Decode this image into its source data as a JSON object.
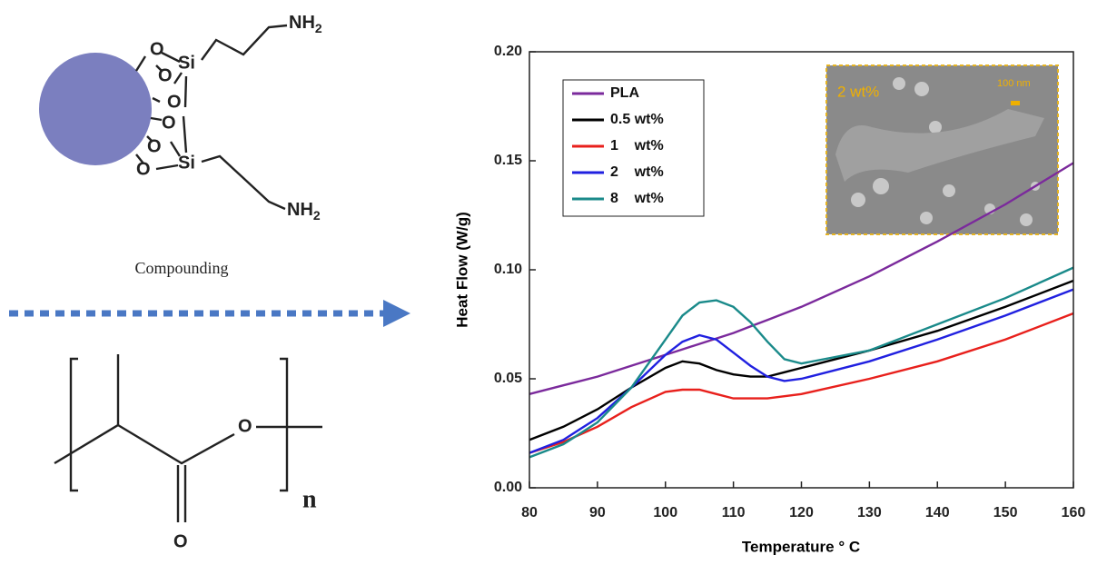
{
  "diagram": {
    "oxygens": [
      "O",
      "O",
      "O",
      "O",
      "O",
      "O"
    ],
    "silicons": [
      "Si",
      "Si"
    ],
    "amines": [
      {
        "text": "NH",
        "sub": "2"
      },
      {
        "text": "NH",
        "sub": "2"
      }
    ],
    "process": "Compounding",
    "pla_oxygens": [
      "O",
      "O"
    ],
    "repeat": "n"
  },
  "chart_data": {
    "type": "line",
    "xlabel": "Temperature ° C",
    "ylabel": "Heat Flow (W/g)",
    "x": [
      80,
      85,
      90,
      95,
      100,
      102.5,
      105,
      107.5,
      110,
      112.5,
      115,
      117.5,
      120,
      130,
      140,
      150,
      160
    ],
    "series": [
      {
        "name": "PLA",
        "color": "#7b2a9c",
        "values": [
          0.043,
          0.047,
          0.051,
          0.056,
          0.061,
          0.0635,
          0.066,
          0.0685,
          0.071,
          0.074,
          0.077,
          0.08,
          0.083,
          0.097,
          0.113,
          0.13,
          0.149
        ]
      },
      {
        "name": "0.5 wt%",
        "color": "#000000",
        "values": [
          0.022,
          0.028,
          0.036,
          0.046,
          0.055,
          0.058,
          0.057,
          0.054,
          0.052,
          0.051,
          0.051,
          0.053,
          0.055,
          0.063,
          0.072,
          0.083,
          0.095
        ]
      },
      {
        "name": "1    wt%",
        "color": "#e8201c",
        "values": [
          0.016,
          0.021,
          0.028,
          0.037,
          0.044,
          0.045,
          0.045,
          0.043,
          0.041,
          0.041,
          0.041,
          0.042,
          0.043,
          0.05,
          0.058,
          0.068,
          0.08
        ]
      },
      {
        "name": "2    wt%",
        "color": "#2020e0",
        "values": [
          0.016,
          0.022,
          0.032,
          0.046,
          0.061,
          0.067,
          0.07,
          0.068,
          0.062,
          0.056,
          0.051,
          0.049,
          0.05,
          0.058,
          0.068,
          0.079,
          0.091
        ]
      },
      {
        "name": "8    wt%",
        "color": "#1a8a8a",
        "values": [
          0.014,
          0.02,
          0.03,
          0.046,
          0.068,
          0.079,
          0.085,
          0.086,
          0.083,
          0.076,
          0.067,
          0.059,
          0.057,
          0.063,
          0.075,
          0.087,
          0.101
        ]
      }
    ],
    "xlim": [
      80,
      160
    ],
    "xticks": [
      80,
      90,
      100,
      110,
      120,
      130,
      140,
      150,
      160
    ],
    "ylim": [
      0,
      0.2
    ],
    "yticks": [
      {
        "value": 0,
        "label": "0.00"
      },
      {
        "value": 0.05,
        "label": "0.05"
      },
      {
        "value": 0.1,
        "label": "0.10"
      },
      {
        "value": 0.15,
        "label": "0.15"
      },
      {
        "value": 0.2,
        "label": "0.20"
      }
    ],
    "legend": "upper left",
    "inset": {
      "label": "2 wt%",
      "scale": "100 nm"
    }
  }
}
